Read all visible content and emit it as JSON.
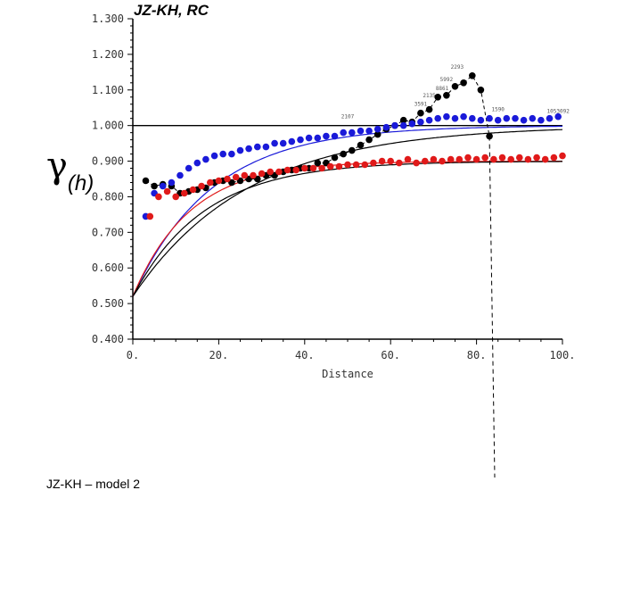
{
  "chart_data": {
    "type": "scatter",
    "title": "JZ-KH, RC",
    "ylabel_symbol": "γ",
    "ylabel_sub": "(h)",
    "xlabel": "Distance",
    "xlim": [
      0,
      100
    ],
    "ylim": [
      0.4,
      1.3
    ],
    "x_ticks": [
      "0.",
      "20.",
      "40.",
      "60.",
      "80.",
      "100."
    ],
    "y_ticks": [
      "0.400",
      "0.500",
      "0.600",
      "0.700",
      "0.800",
      "0.900",
      "1.000",
      "1.100",
      "1.200",
      "1.300"
    ],
    "sill": 1.0,
    "grid": false,
    "series": [
      {
        "color": "#000000",
        "x": [
          3,
          5,
          7,
          9,
          11,
          13,
          15,
          17,
          19,
          21,
          23,
          25,
          27,
          29,
          31,
          33,
          35,
          37,
          39,
          41,
          43,
          45,
          47,
          49,
          51,
          53,
          55,
          57,
          59,
          61,
          63,
          65,
          67,
          69,
          71,
          73,
          75,
          77,
          79,
          81,
          83
        ],
        "y": [
          0.845,
          0.83,
          0.835,
          0.83,
          0.81,
          0.815,
          0.82,
          0.825,
          0.84,
          0.845,
          0.84,
          0.845,
          0.85,
          0.85,
          0.86,
          0.86,
          0.87,
          0.875,
          0.88,
          0.88,
          0.895,
          0.895,
          0.91,
          0.92,
          0.93,
          0.945,
          0.96,
          0.975,
          0.99,
          1.0,
          1.015,
          1.01,
          1.035,
          1.045,
          1.08,
          1.085,
          1.11,
          1.12,
          1.14,
          1.1,
          0.97
        ]
      },
      {
        "color": "#1a1ad9",
        "x": [
          3,
          5,
          7,
          9,
          11,
          13,
          15,
          17,
          19,
          21,
          23,
          25,
          27,
          29,
          31,
          33,
          35,
          37,
          39,
          41,
          43,
          45,
          47,
          49,
          51,
          53,
          55,
          57,
          59,
          61,
          63,
          65,
          67,
          69,
          71,
          73,
          75,
          77,
          79,
          81,
          83,
          85,
          87,
          89,
          91,
          93,
          95,
          97,
          99
        ],
        "y": [
          0.745,
          0.81,
          0.83,
          0.84,
          0.86,
          0.88,
          0.895,
          0.905,
          0.915,
          0.92,
          0.92,
          0.93,
          0.935,
          0.94,
          0.94,
          0.95,
          0.95,
          0.955,
          0.96,
          0.965,
          0.965,
          0.97,
          0.97,
          0.98,
          0.98,
          0.985,
          0.985,
          0.99,
          0.995,
          1.0,
          1.0,
          1.005,
          1.01,
          1.015,
          1.02,
          1.025,
          1.02,
          1.025,
          1.02,
          1.015,
          1.02,
          1.015,
          1.02,
          1.02,
          1.015,
          1.02,
          1.015,
          1.02,
          1.025
        ]
      },
      {
        "color": "#e01a1a",
        "x": [
          4,
          6,
          8,
          10,
          12,
          14,
          16,
          18,
          20,
          22,
          24,
          26,
          28,
          30,
          32,
          34,
          36,
          38,
          40,
          42,
          44,
          46,
          48,
          50,
          52,
          54,
          56,
          58,
          60,
          62,
          64,
          66,
          68,
          70,
          72,
          74,
          76,
          78,
          80,
          82,
          84,
          86,
          88,
          90,
          92,
          94,
          96,
          98,
          100
        ],
        "y": [
          0.745,
          0.8,
          0.815,
          0.8,
          0.81,
          0.82,
          0.83,
          0.84,
          0.845,
          0.85,
          0.855,
          0.86,
          0.86,
          0.865,
          0.87,
          0.87,
          0.875,
          0.875,
          0.88,
          0.88,
          0.88,
          0.885,
          0.885,
          0.89,
          0.89,
          0.89,
          0.895,
          0.9,
          0.9,
          0.895,
          0.905,
          0.895,
          0.9,
          0.905,
          0.9,
          0.905,
          0.905,
          0.91,
          0.905,
          0.91,
          0.905,
          0.91,
          0.905,
          0.91,
          0.905,
          0.91,
          0.905,
          0.91,
          0.915
        ]
      }
    ],
    "model_curves": [
      {
        "color": "#000000",
        "nugget": 0.52,
        "sill": 1.0,
        "range": 80
      },
      {
        "color": "#1a1ad9",
        "nugget": 0.52,
        "sill": 1.0,
        "range": 55
      },
      {
        "color": "#e01a1a",
        "nugget": 0.52,
        "sill": 0.9,
        "range": 40
      },
      {
        "color": "#000000",
        "nugget": 0.52,
        "sill": 0.9,
        "range": 50
      }
    ],
    "pair_count_labels": [
      "2293",
      "5992",
      "8861",
      "2135",
      "3591",
      "1053092",
      "2107",
      "1590"
    ]
  },
  "caption": "JZ-KH – model 2"
}
